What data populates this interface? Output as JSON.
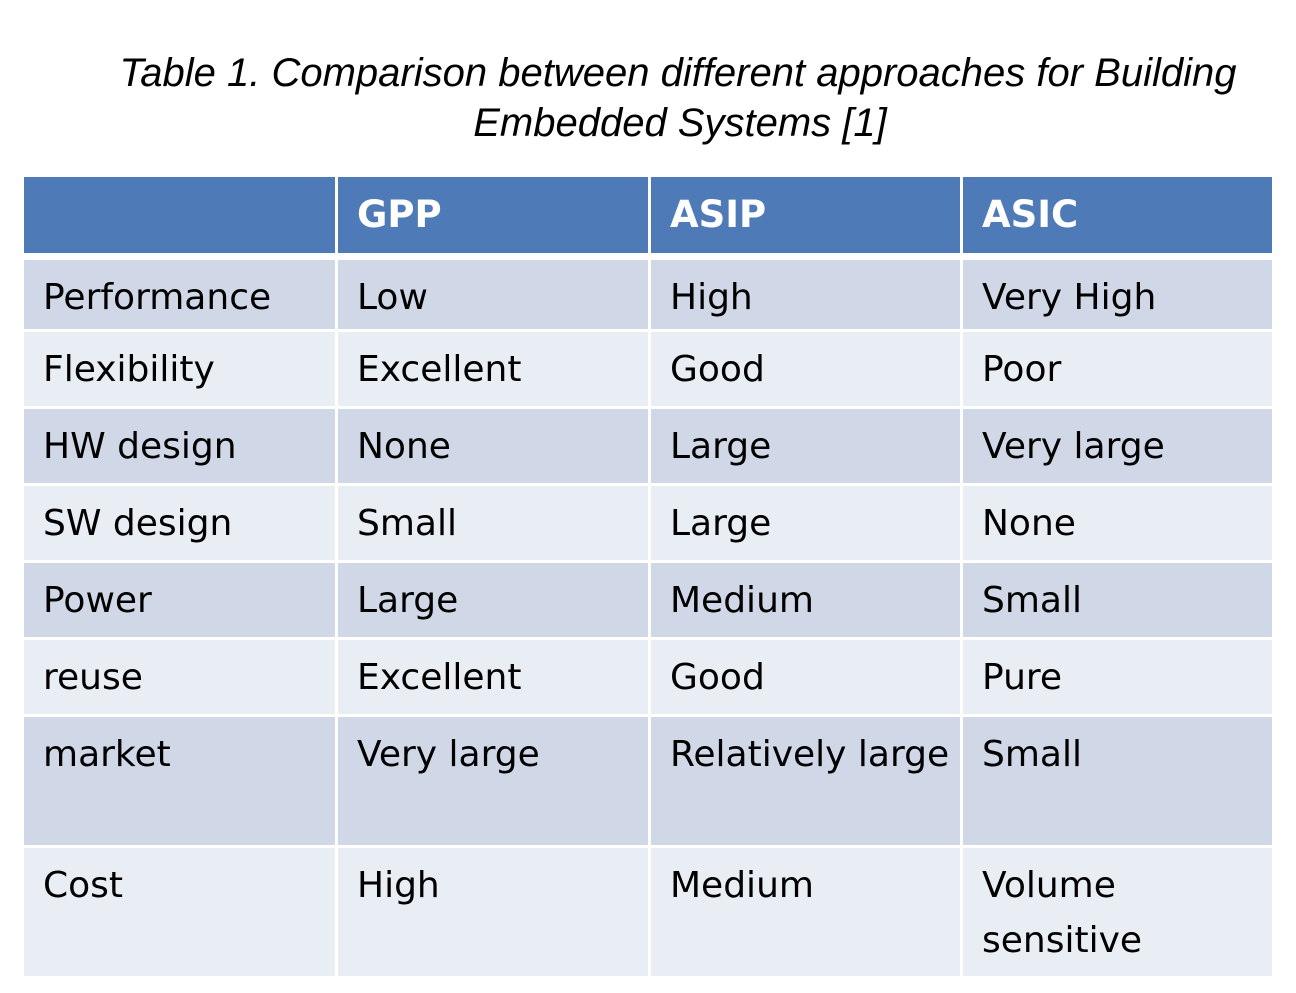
{
  "caption": {
    "line1": "Table 1. Comparison between different approaches for Building",
    "line2": "Embedded Systems [1]"
  },
  "table": {
    "headers": [
      "",
      "GPP",
      "ASIP",
      "ASIC"
    ],
    "rows": [
      [
        "Performance",
        "Low",
        "High",
        "Very High"
      ],
      [
        "Flexibility",
        "Excellent",
        "Good",
        "Poor"
      ],
      [
        "HW design",
        "None",
        "Large",
        "Very large"
      ],
      [
        "SW design",
        "Small",
        "Large",
        "None"
      ],
      [
        "Power",
        "Large",
        "Medium",
        "Small"
      ],
      [
        "reuse",
        "Excellent",
        "Good",
        "Pure"
      ],
      [
        "market",
        "Very large",
        "Relatively large",
        "Small"
      ],
      [
        "Cost",
        "High",
        "Medium",
        "Volume sensitive"
      ]
    ]
  },
  "colors": {
    "header_bg": "#4f7ab8",
    "row_dark": "#d0d8e8",
    "row_light": "#e9edf4"
  }
}
